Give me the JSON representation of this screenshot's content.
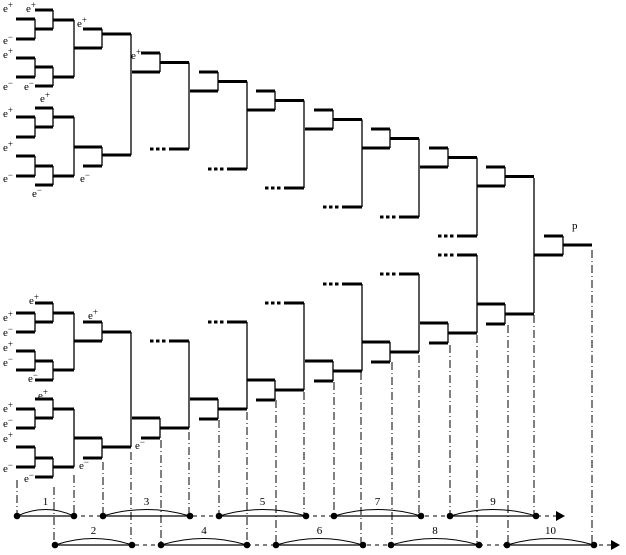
{
  "diagram": {
    "line_color": "#000000",
    "product_label": "p",
    "particle_labels_top": [
      "e+",
      "e+",
      "e-",
      "e+",
      "e-",
      "e-",
      "e+",
      "e+",
      "e+",
      "e+",
      "e-",
      "e-",
      "e-",
      "e+"
    ],
    "particle_labels_bottom": [
      "e+",
      "e+",
      "e-",
      "e+",
      "e-",
      "e-",
      "e+",
      "e+",
      "e+",
      "e-",
      "e+",
      "e-",
      "e-",
      "e-",
      "e-"
    ],
    "ellipsis": "...",
    "timeline_row1_labels": [
      "1",
      "3",
      "5",
      "7",
      "9"
    ],
    "timeline_row2_labels": [
      "2",
      "4",
      "6",
      "8",
      "10"
    ]
  }
}
